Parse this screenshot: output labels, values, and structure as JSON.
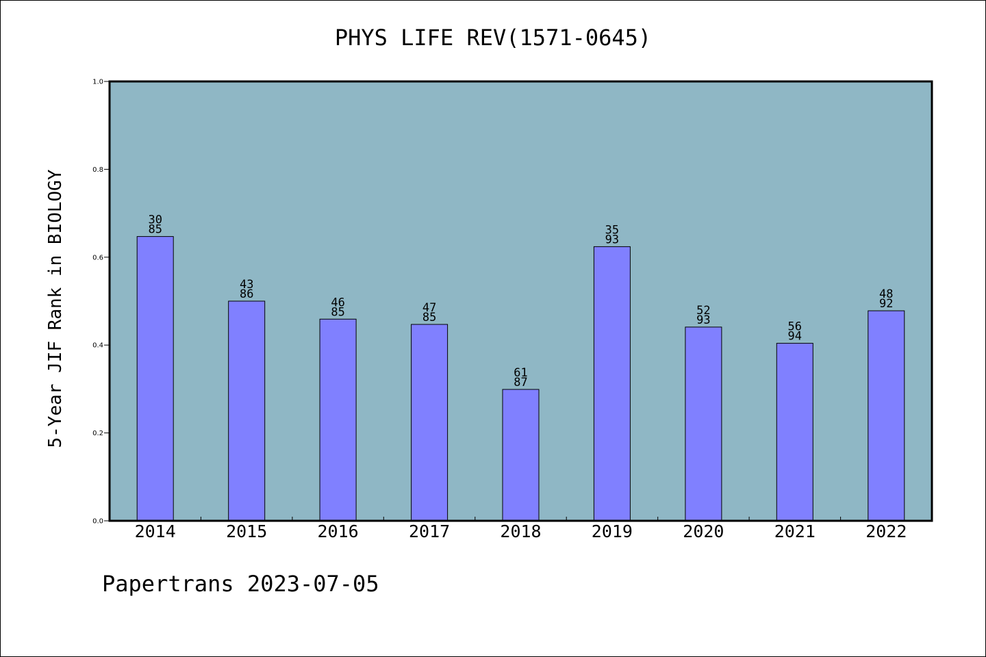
{
  "chart_data": {
    "type": "bar",
    "title": "PHYS LIFE REV(1571-0645)",
    "ylabel": "5-Year JIF Rank in BIOLOGY",
    "xlabel": "",
    "footer": "Papertrans 2023-07-05",
    "ylim": [
      0.0,
      1.0
    ],
    "yticks": [
      "0.0",
      "0.2",
      "0.4",
      "0.6",
      "0.8",
      "1.0"
    ],
    "grid": false,
    "categories": [
      "2014",
      "2015",
      "2016",
      "2017",
      "2018",
      "2019",
      "2020",
      "2021",
      "2022"
    ],
    "values": [
      0.647,
      0.5,
      0.459,
      0.447,
      0.299,
      0.624,
      0.441,
      0.404,
      0.478
    ],
    "bar_labels": [
      [
        "30",
        "85"
      ],
      [
        "43",
        "86"
      ],
      [
        "46",
        "85"
      ],
      [
        "47",
        "85"
      ],
      [
        "61",
        "87"
      ],
      [
        "35",
        "93"
      ],
      [
        "52",
        "93"
      ],
      [
        "56",
        "94"
      ],
      [
        "48",
        "92"
      ]
    ],
    "colors": {
      "plot_background": "#8fb7c5",
      "bar_fill": "#8080ff",
      "bar_edge": "#000000"
    }
  }
}
